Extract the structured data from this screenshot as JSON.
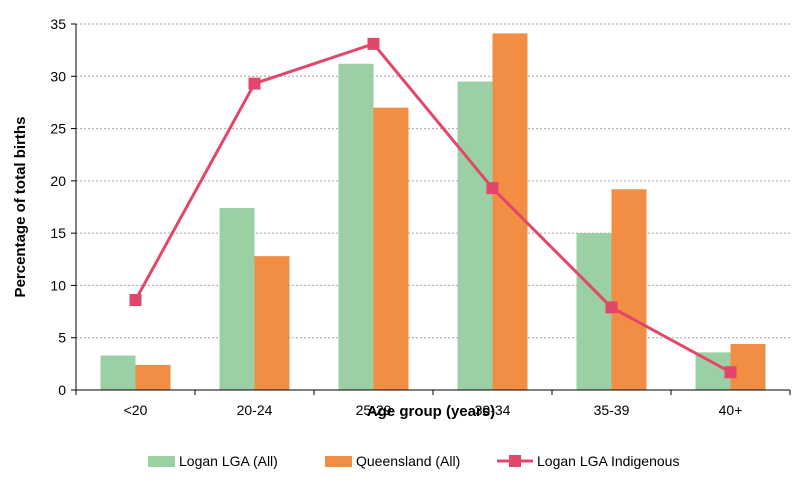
{
  "chart_data": {
    "type": "bar",
    "title": "",
    "xlabel": "Age group (years)",
    "ylabel": "Percentage of total births",
    "ylim": [
      0,
      35
    ],
    "yticks": [
      0,
      5,
      10,
      15,
      20,
      25,
      30,
      35
    ],
    "grid": true,
    "legend_position": "bottom",
    "categories": [
      "<20",
      "20-24",
      "25-29",
      "30-34",
      "35-39",
      "40+"
    ],
    "series": [
      {
        "name": "Logan LGA (All)",
        "kind": "bar",
        "color": "#9bd0a5",
        "values": [
          3.3,
          17.4,
          31.2,
          29.5,
          15.0,
          3.6
        ]
      },
      {
        "name": "Queensland (All)",
        "kind": "bar",
        "color": "#f28e43",
        "values": [
          2.4,
          12.8,
          27.0,
          34.1,
          19.2,
          4.4
        ]
      },
      {
        "name": "Logan LGA Indigenous",
        "kind": "line",
        "color": "#e2476b",
        "values": [
          8.6,
          29.3,
          33.1,
          19.3,
          7.9,
          1.7
        ]
      }
    ]
  }
}
